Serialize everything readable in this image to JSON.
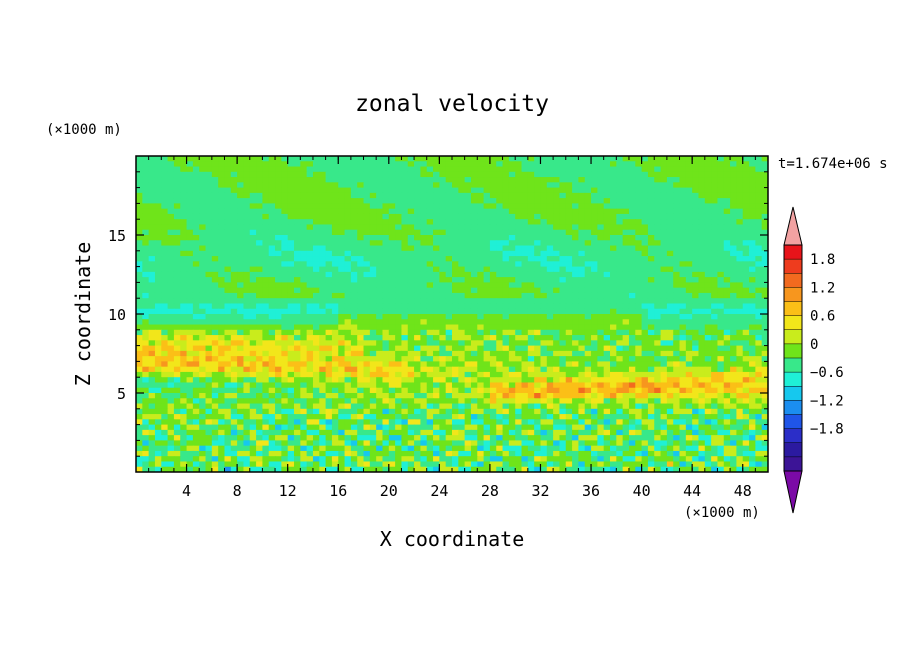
{
  "chart_data": {
    "type": "heatmap",
    "title": "zonal velocity",
    "xlabel": "X coordinate",
    "ylabel": "Z coordinate",
    "x_unit": "(×1000 m)",
    "y_unit": "(×1000 m)",
    "time_label": "t=1.674e+06 s",
    "xlim": [
      0,
      50
    ],
    "ylim": [
      0,
      20
    ],
    "x_ticks": [
      "4",
      "8",
      "12",
      "16",
      "20",
      "24",
      "28",
      "32",
      "36",
      "40",
      "44",
      "48"
    ],
    "y_ticks": [
      "5",
      "10",
      "15"
    ],
    "colorbar": {
      "tick_labels": [
        "1.8",
        "1.2",
        "0.6",
        "0",
        "−0.6",
        "−1.2",
        "−1.8"
      ],
      "levels_top_to_bottom": [
        2.1,
        1.8,
        1.5,
        1.2,
        0.9,
        0.6,
        0.3,
        0.0,
        -0.3,
        -0.6,
        -0.9,
        -1.2,
        -1.5,
        -1.8,
        -2.1
      ],
      "colors_top_to_bottom": [
        "#e8141a",
        "#ee3c1e",
        "#f26a1f",
        "#f7961e",
        "#fbbf17",
        "#f2e61a",
        "#c9ec1c",
        "#6fe41a",
        "#38e88a",
        "#1ff0d6",
        "#16c8ee",
        "#1b8ef0",
        "#1f55e8",
        "#2b2ec8",
        "#2b1aa0",
        "#3c1496"
      ],
      "over_color": "#f2a2a2",
      "under_color": "#7b0aa6"
    },
    "field_description_bands": [
      {
        "z_range": [
          17,
          20
        ],
        "typical_value": 0.1
      },
      {
        "z_range": [
          11,
          17
        ],
        "typical_value": -0.1
      },
      {
        "z_range": [
          9.5,
          11
        ],
        "typical_value": -0.4
      },
      {
        "z_range": [
          6,
          9
        ],
        "typical_value": 0.8
      },
      {
        "z_range": [
          4,
          6
        ],
        "typical_value": 0.5
      },
      {
        "z_range": [
          0,
          4
        ],
        "typical_value": 0.0
      }
    ]
  }
}
